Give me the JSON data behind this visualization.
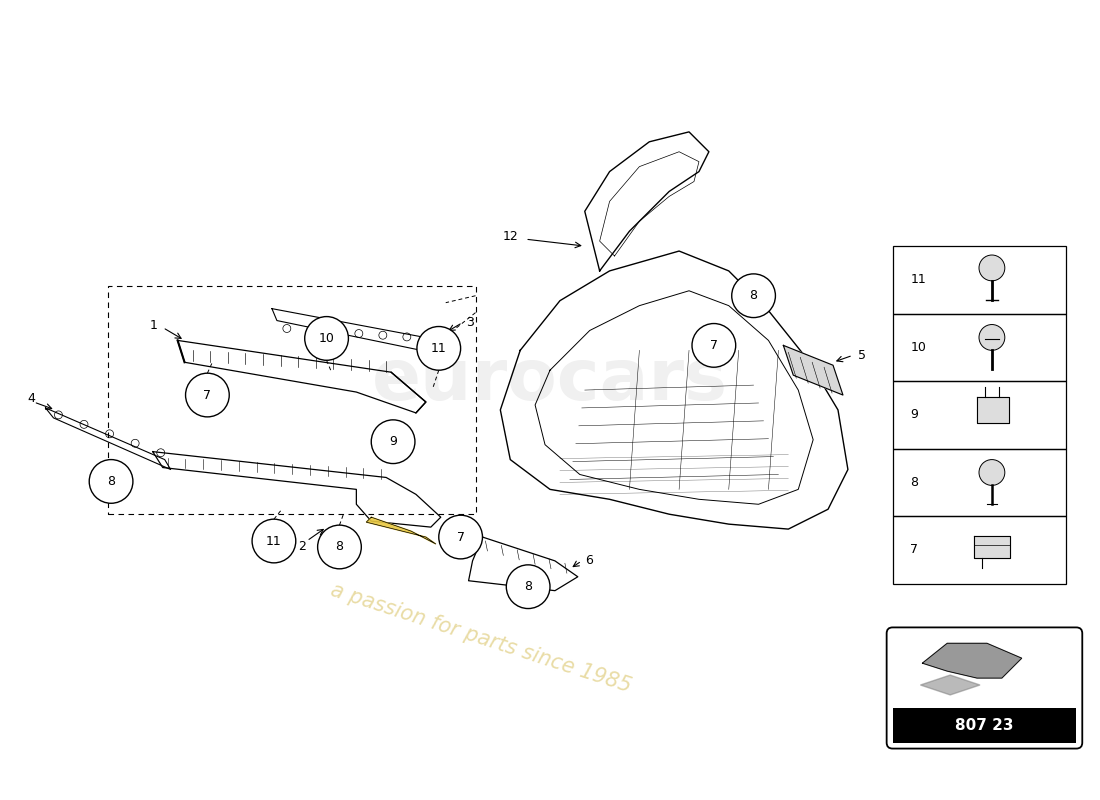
{
  "bg_color": "#ffffff",
  "part_number": "807 23",
  "watermark_text1": "eurocars",
  "watermark_text2": "a passion for parts since 1985",
  "legend_items": [
    {
      "num": 11
    },
    {
      "num": 10
    },
    {
      "num": 9
    },
    {
      "num": 8
    },
    {
      "num": 7
    }
  ]
}
